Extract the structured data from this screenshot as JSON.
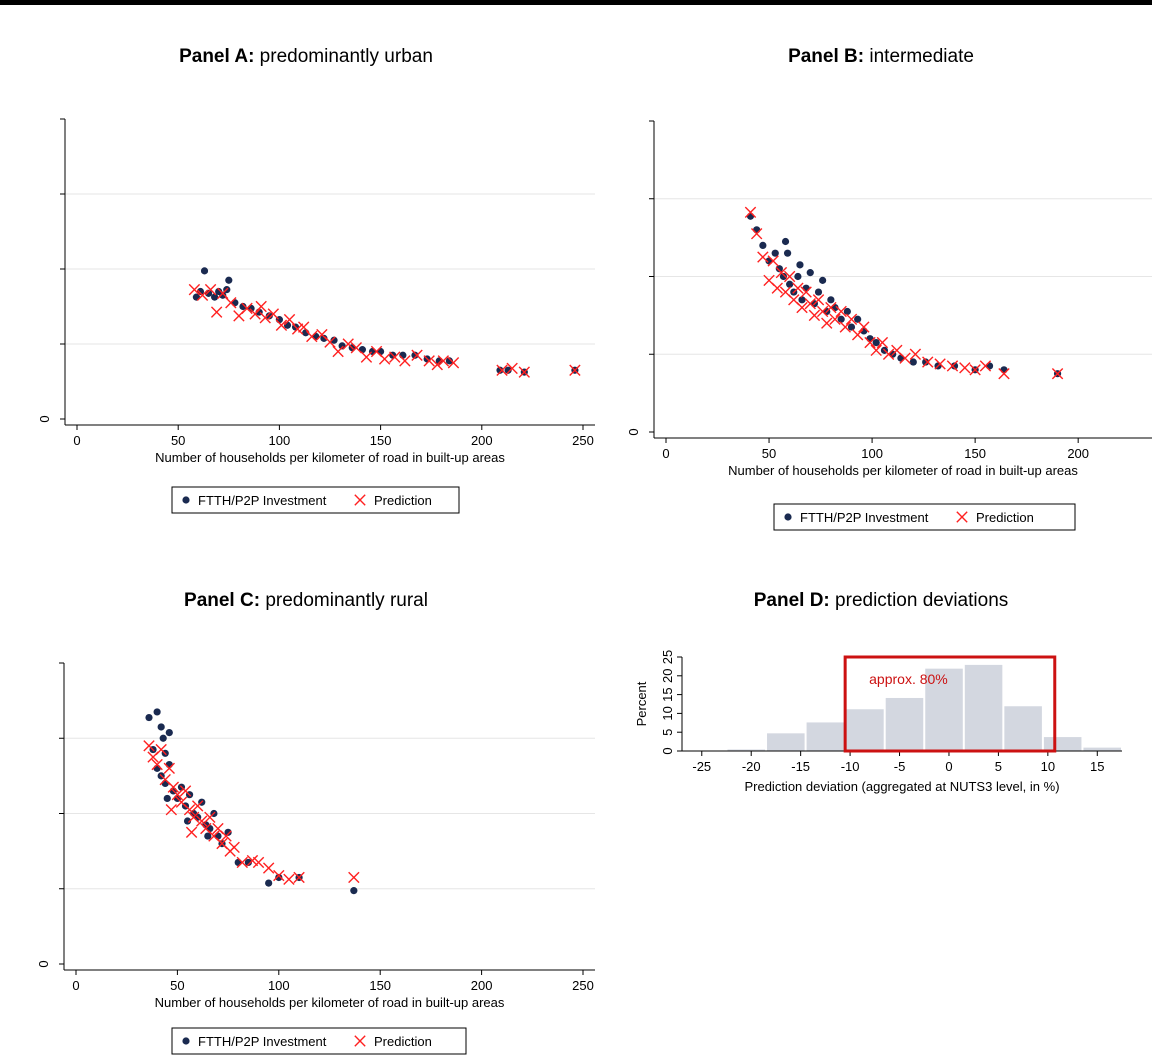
{
  "chart_data": [
    {
      "type": "scatter",
      "title_bold": "Panel A:",
      "title_rest": "predominantly urban",
      "xlabel": "Number of households per kilometer of road in built-up areas",
      "ylabel": "",
      "xlim": [
        0,
        250
      ],
      "x_ticks": [
        0,
        50,
        100,
        150,
        200,
        250
      ],
      "ylim": [
        0,
        8000
      ],
      "y_ticks": [
        0,
        2000,
        4000,
        6000,
        8000
      ],
      "y_tick_labels": [
        "0",
        "",
        "",
        "",
        ""
      ],
      "grid": true,
      "legend": "bottom",
      "series": [
        {
          "name": "FTTH/P2P Investment",
          "marker": "dot",
          "color": "#1a2a50",
          "points": [
            [
              59,
              3250
            ],
            [
              61,
              3400
            ],
            [
              63,
              3950
            ],
            [
              65,
              3350
            ],
            [
              68,
              3250
            ],
            [
              70,
              3400
            ],
            [
              72,
              3300
            ],
            [
              74,
              3450
            ],
            [
              75,
              3700
            ],
            [
              78,
              3100
            ],
            [
              82,
              3000
            ],
            [
              86,
              2950
            ],
            [
              90,
              2850
            ],
            [
              95,
              2750
            ],
            [
              100,
              2650
            ],
            [
              104,
              2500
            ],
            [
              108,
              2450
            ],
            [
              113,
              2300
            ],
            [
              118,
              2200
            ],
            [
              122,
              2150
            ],
            [
              127,
              2100
            ],
            [
              131,
              1950
            ],
            [
              136,
              1900
            ],
            [
              141,
              1850
            ],
            [
              146,
              1800
            ],
            [
              150,
              1800
            ],
            [
              156,
              1700
            ],
            [
              161,
              1700
            ],
            [
              167,
              1700
            ],
            [
              173,
              1600
            ],
            [
              179,
              1550
            ],
            [
              184,
              1550
            ],
            [
              209,
              1300
            ],
            [
              213,
              1300
            ],
            [
              221,
              1250
            ],
            [
              246,
              1300
            ]
          ]
        },
        {
          "name": "Prediction",
          "marker": "x",
          "color": "#ff2020",
          "points": [
            [
              58,
              3450
            ],
            [
              62,
              3300
            ],
            [
              66,
              3450
            ],
            [
              69,
              2850
            ],
            [
              72,
              3350
            ],
            [
              76,
              3100
            ],
            [
              80,
              2750
            ],
            [
              84,
              2950
            ],
            [
              88,
              2800
            ],
            [
              91,
              3000
            ],
            [
              93,
              2700
            ],
            [
              97,
              2800
            ],
            [
              101,
              2500
            ],
            [
              105,
              2650
            ],
            [
              109,
              2400
            ],
            [
              112,
              2450
            ],
            [
              116,
              2200
            ],
            [
              121,
              2250
            ],
            [
              125,
              2050
            ],
            [
              129,
              1800
            ],
            [
              134,
              2000
            ],
            [
              138,
              1900
            ],
            [
              143,
              1650
            ],
            [
              148,
              1800
            ],
            [
              152,
              1600
            ],
            [
              157,
              1650
            ],
            [
              162,
              1550
            ],
            [
              168,
              1700
            ],
            [
              174,
              1550
            ],
            [
              178,
              1450
            ],
            [
              181,
              1550
            ],
            [
              186,
              1500
            ],
            [
              210,
              1300
            ],
            [
              215,
              1350
            ],
            [
              221,
              1250
            ],
            [
              246,
              1300
            ]
          ]
        }
      ]
    },
    {
      "type": "scatter",
      "title_bold": "Panel B:",
      "title_rest": "intermediate",
      "xlabel": "Number of households per kilometer of road in built-up areas",
      "ylabel": "",
      "xlim": [
        0,
        230
      ],
      "x_ticks": [
        0,
        50,
        100,
        150,
        200
      ],
      "ylim": [
        0,
        8000
      ],
      "y_ticks": [
        0,
        2000,
        4000,
        6000,
        8000
      ],
      "y_tick_labels": [
        "0",
        "",
        "",
        "",
        ""
      ],
      "grid": true,
      "legend": "bottom",
      "series": [
        {
          "name": "FTTH/P2P Investment",
          "marker": "dot",
          "color": "#1a2a50",
          "points": [
            [
              41,
              5550
            ],
            [
              44,
              5200
            ],
            [
              47,
              4800
            ],
            [
              50,
              4400
            ],
            [
              53,
              4600
            ],
            [
              55,
              4200
            ],
            [
              57,
              4000
            ],
            [
              59,
              4600
            ],
            [
              60,
              3800
            ],
            [
              62,
              3600
            ],
            [
              64,
              4000
            ],
            [
              66,
              3400
            ],
            [
              68,
              3700
            ],
            [
              70,
              4100
            ],
            [
              72,
              3300
            ],
            [
              74,
              3600
            ],
            [
              76,
              3900
            ],
            [
              78,
              3100
            ],
            [
              80,
              3400
            ],
            [
              82,
              3200
            ],
            [
              85,
              2900
            ],
            [
              88,
              3100
            ],
            [
              90,
              2700
            ],
            [
              93,
              2900
            ],
            [
              96,
              2600
            ],
            [
              99,
              2400
            ],
            [
              102,
              2300
            ],
            [
              106,
              2100
            ],
            [
              110,
              2000
            ],
            [
              114,
              1900
            ],
            [
              120,
              1800
            ],
            [
              126,
              1800
            ],
            [
              132,
              1700
            ],
            [
              140,
              1700
            ],
            [
              150,
              1600
            ],
            [
              157,
              1700
            ],
            [
              164,
              1600
            ],
            [
              190,
              1500
            ],
            [
              58,
              4900
            ],
            [
              65,
              4300
            ]
          ]
        },
        {
          "name": "Prediction",
          "marker": "x",
          "color": "#ff2020",
          "points": [
            [
              41,
              5650
            ],
            [
              44,
              5100
            ],
            [
              47,
              4500
            ],
            [
              50,
              3900
            ],
            [
              52,
              4400
            ],
            [
              54,
              3700
            ],
            [
              56,
              4100
            ],
            [
              58,
              3600
            ],
            [
              60,
              4000
            ],
            [
              62,
              3400
            ],
            [
              64,
              3700
            ],
            [
              66,
              3200
            ],
            [
              68,
              3600
            ],
            [
              70,
              3300
            ],
            [
              72,
              3000
            ],
            [
              74,
              3400
            ],
            [
              76,
              3100
            ],
            [
              78,
              2800
            ],
            [
              80,
              3200
            ],
            [
              82,
              2900
            ],
            [
              85,
              3100
            ],
            [
              87,
              2700
            ],
            [
              90,
              2900
            ],
            [
              93,
              2500
            ],
            [
              96,
              2700
            ],
            [
              99,
              2300
            ],
            [
              102,
              2100
            ],
            [
              105,
              2300
            ],
            [
              108,
              2000
            ],
            [
              112,
              2100
            ],
            [
              116,
              1900
            ],
            [
              121,
              2000
            ],
            [
              127,
              1800
            ],
            [
              133,
              1750
            ],
            [
              139,
              1700
            ],
            [
              145,
              1650
            ],
            [
              150,
              1600
            ],
            [
              155,
              1700
            ],
            [
              164,
              1500
            ],
            [
              190,
              1500
            ]
          ]
        }
      ]
    },
    {
      "type": "scatter",
      "title_bold": "Panel C:",
      "title_rest": "predominantly rural",
      "xlabel": "Number of households per kilometer of road in built-up areas",
      "ylabel": "",
      "xlim": [
        0,
        250
      ],
      "x_ticks": [
        0,
        50,
        100,
        150,
        200,
        250
      ],
      "ylim": [
        0,
        8000
      ],
      "y_ticks": [
        0,
        2000,
        4000,
        6000,
        8000
      ],
      "y_tick_labels": [
        "0",
        "",
        "",
        "",
        ""
      ],
      "grid": true,
      "legend": "bottom",
      "series": [
        {
          "name": "FTTH/P2P Investment",
          "marker": "dot",
          "color": "#1a2a50",
          "points": [
            [
              36,
              6550
            ],
            [
              40,
              6700
            ],
            [
              42,
              6300
            ],
            [
              43,
              6000
            ],
            [
              44,
              5600
            ],
            [
              46,
              6150
            ],
            [
              38,
              5700
            ],
            [
              40,
              5200
            ],
            [
              42,
              5000
            ],
            [
              44,
              4800
            ],
            [
              46,
              5300
            ],
            [
              48,
              4600
            ],
            [
              50,
              4400
            ],
            [
              52,
              4700
            ],
            [
              54,
              4200
            ],
            [
              56,
              4500
            ],
            [
              58,
              4000
            ],
            [
              60,
              3900
            ],
            [
              62,
              4300
            ],
            [
              64,
              3700
            ],
            [
              66,
              3600
            ],
            [
              68,
              4000
            ],
            [
              70,
              3400
            ],
            [
              72,
              3200
            ],
            [
              75,
              3500
            ],
            [
              80,
              2700
            ],
            [
              85,
              2700
            ],
            [
              95,
              2150
            ],
            [
              100,
              2300
            ],
            [
              110,
              2300
            ],
            [
              137,
              1950
            ],
            [
              45,
              4400
            ],
            [
              55,
              3800
            ],
            [
              65,
              3400
            ]
          ]
        },
        {
          "name": "Prediction",
          "marker": "x",
          "color": "#ff2020",
          "points": [
            [
              36,
              5800
            ],
            [
              38,
              5500
            ],
            [
              40,
              5300
            ],
            [
              42,
              5700
            ],
            [
              44,
              4900
            ],
            [
              46,
              5200
            ],
            [
              48,
              4700
            ],
            [
              50,
              4500
            ],
            [
              52,
              4300
            ],
            [
              54,
              4600
            ],
            [
              56,
              4100
            ],
            [
              58,
              3900
            ],
            [
              60,
              4200
            ],
            [
              62,
              3800
            ],
            [
              64,
              3600
            ],
            [
              66,
              3900
            ],
            [
              68,
              3400
            ],
            [
              70,
              3600
            ],
            [
              72,
              3200
            ],
            [
              74,
              3400
            ],
            [
              76,
              3000
            ],
            [
              78,
              3100
            ],
            [
              82,
              2700
            ],
            [
              87,
              2750
            ],
            [
              90,
              2700
            ],
            [
              95,
              2550
            ],
            [
              100,
              2350
            ],
            [
              105,
              2250
            ],
            [
              110,
              2300
            ],
            [
              137,
              2300
            ],
            [
              47,
              4100
            ],
            [
              57,
              3500
            ]
          ]
        }
      ]
    },
    {
      "type": "bar",
      "title_bold": "Panel D:",
      "title_rest": "prediction deviations",
      "xlabel": "Prediction deviation (aggregated at NUTS3 level, in %)",
      "ylabel": "Percent",
      "x_ticks": [
        -25,
        -20,
        -15,
        -10,
        -5,
        0,
        5,
        10,
        15
      ],
      "xlim": [
        -27,
        17.5
      ],
      "ylim": [
        0,
        25
      ],
      "y_ticks": [
        0,
        5,
        10,
        15,
        20,
        25
      ],
      "bin_width": 4,
      "bins": [
        {
          "left": -22.5,
          "value": 0.4
        },
        {
          "left": -18.5,
          "value": 4.7
        },
        {
          "left": -14.5,
          "value": 7.6
        },
        {
          "left": -10.5,
          "value": 11.1
        },
        {
          "left": -6.5,
          "value": 14.1
        },
        {
          "left": -2.5,
          "value": 21.9
        },
        {
          "left": 1.5,
          "value": 22.9
        },
        {
          "left": 5.5,
          "value": 11.9
        },
        {
          "left": 9.5,
          "value": 3.7
        },
        {
          "left": 13.5,
          "value": 0.9
        }
      ],
      "bar_color": "#d3d7e0",
      "highlight": {
        "from": -10.5,
        "to": 10.7,
        "label": "approx. 80%",
        "color": "#cc1111"
      }
    }
  ]
}
